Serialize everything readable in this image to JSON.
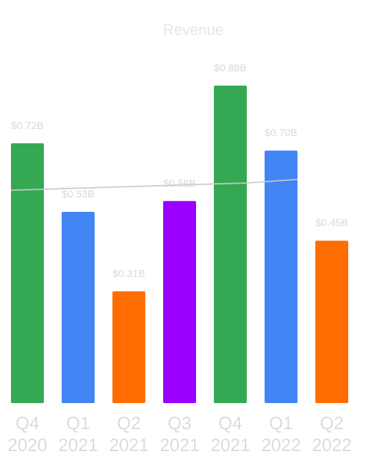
{
  "chart_data": {
    "type": "bar",
    "title": "Revenue",
    "xlabel": "",
    "ylabel": "",
    "ylim": [
      0,
      0.95
    ],
    "grid": false,
    "legend": "none",
    "categories": [
      [
        "Q4",
        "2020"
      ],
      [
        "Q1",
        "2021"
      ],
      [
        "Q2",
        "2021"
      ],
      [
        "Q3",
        "2021"
      ],
      [
        "Q4",
        "2021"
      ],
      [
        "Q1",
        "2022"
      ],
      [
        "Q2",
        "2022"
      ]
    ],
    "values": [
      0.72,
      0.53,
      0.31,
      0.56,
      0.88,
      0.7,
      0.45
    ],
    "value_labels": [
      "$0.72B",
      "$0.53B",
      "$0.31B",
      "$0.56B",
      "$0.88B",
      "$0.70B",
      "$0.45B"
    ],
    "bar_colors": [
      "#34a853",
      "#4285f4",
      "#ff6d00",
      "#9900ff",
      "#34a853",
      "#4285f4",
      "#ff6d00"
    ],
    "trend_line": {
      "type": "line",
      "points": [
        {
          "category": 0,
          "value": 0.59
        },
        {
          "category": 4,
          "value": 0.61
        },
        {
          "category": 5,
          "value": 0.62
        }
      ],
      "color": "#cccccc"
    }
  }
}
